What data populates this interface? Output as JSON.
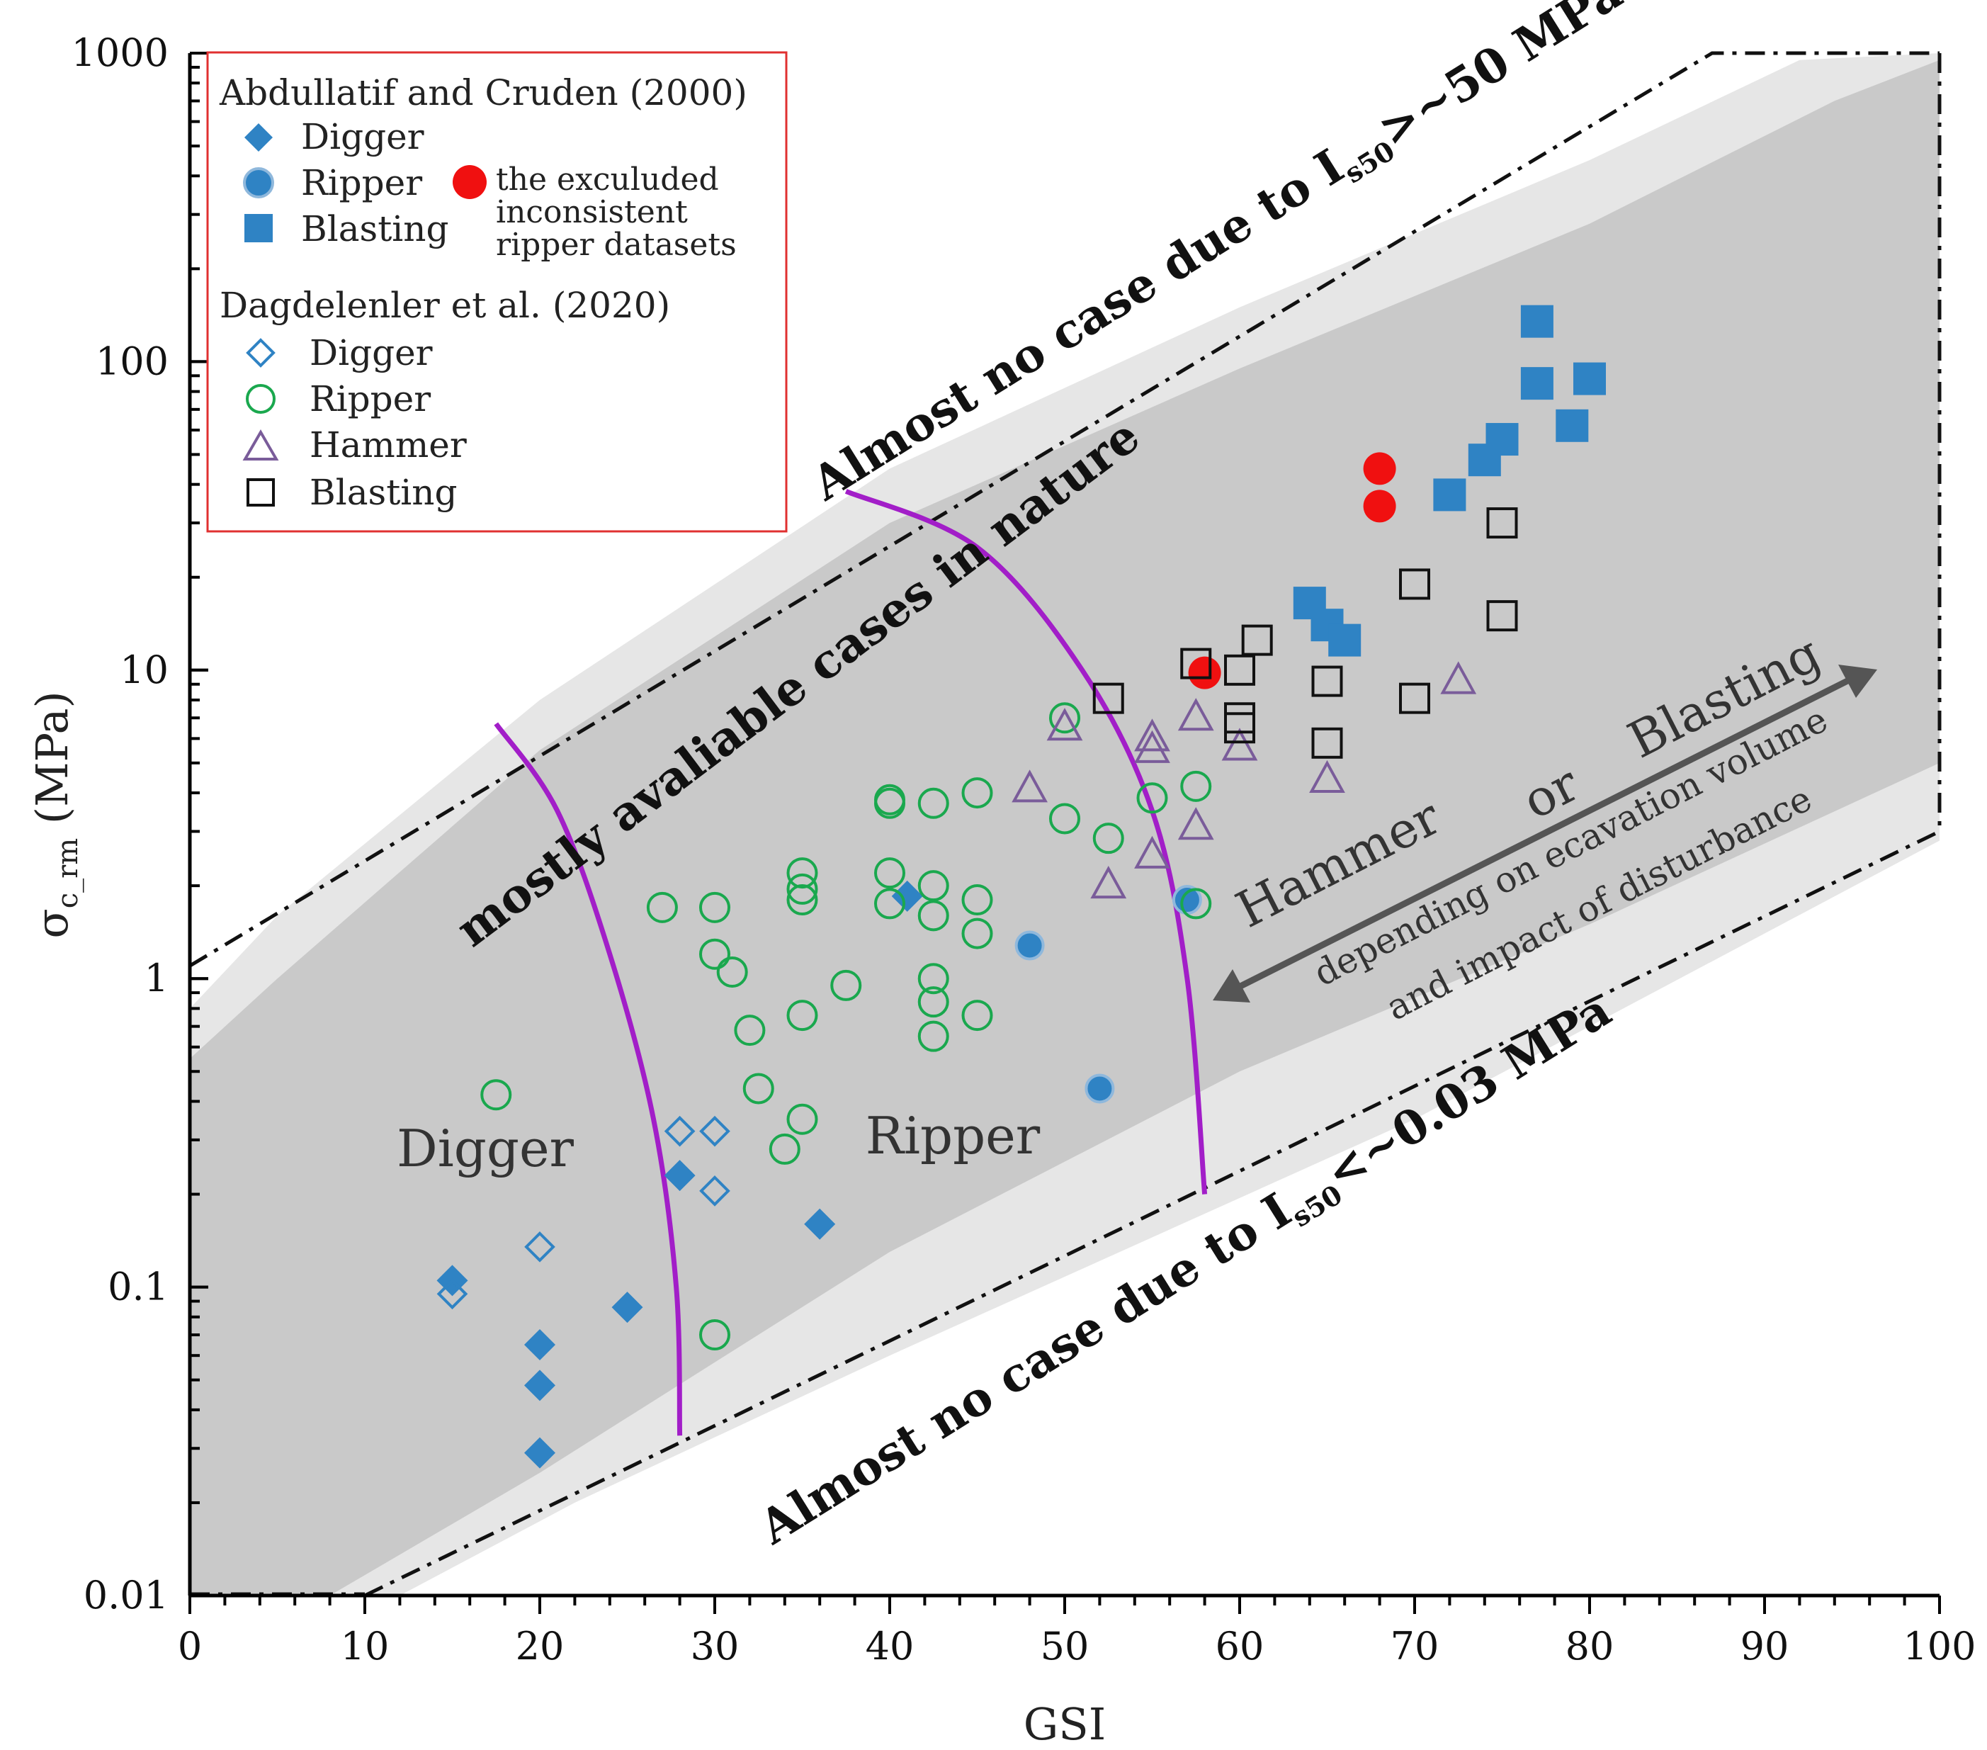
{
  "chart_data": {
    "type": "scatter",
    "title": "",
    "xlabel": "GSI",
    "ylabel": "σc_rm (MPa)",
    "ylabel_main": "σ",
    "ylabel_sub": "c_rm",
    "ylabel_unit": "(MPa)",
    "xscale": "linear",
    "yscale": "log",
    "xlim": [
      0,
      100
    ],
    "ylim": [
      0.01,
      1000
    ],
    "x_ticks": [
      "0",
      "10",
      "20",
      "30",
      "40",
      "50",
      "60",
      "70",
      "80",
      "90",
      "100"
    ],
    "y_ticks": [
      "0.01",
      "0.1",
      "1",
      "10",
      "100",
      "1000"
    ],
    "legend": {
      "group1_title": "Abdullatif and Cruden (2000)",
      "group1_items": [
        "Digger",
        "Ripper",
        "Blasting"
      ],
      "excluded_lines": [
        "the exculuded",
        "inconsistent",
        "ripper datasets"
      ],
      "group2_title": "Dagdelenler et al.  (2020)",
      "group2_items": [
        "Digger",
        "Ripper",
        "Hammer",
        "Blasting"
      ],
      "placement": "top-left"
    },
    "colors": {
      "blue": "#2f83c4",
      "green": "#1aa84e",
      "purple": "#7a5c9a",
      "red": "#f01010",
      "magenta": "#a21ec8",
      "band_light": "#e6e6e6",
      "band_dark": "#c9c9c9",
      "legend_border": "#e03030"
    },
    "region_labels": [
      "Digger",
      "Ripper"
    ],
    "band_label": "mostly avaliable cases in nature",
    "upper_bound": {
      "prefix": "Almost no case due to I",
      "sub": "s50",
      "suffix": ">~50 MPa"
    },
    "lower_bound": {
      "prefix": "Almost no case due to I",
      "sub": "s50",
      "suffix": "<~0.03 MPa"
    },
    "arrow_labels": {
      "hammer": "Hammer",
      "or": "or",
      "blasting": "Blasting",
      "line1": "depending on ecavation volume",
      "line2": "and impact of disturbance"
    },
    "upper_limit_line": [
      [
        0,
        1.1
      ],
      [
        87,
        1000
      ],
      [
        100,
        1000
      ]
    ],
    "lower_limit_line": [
      [
        10,
        0.01
      ],
      [
        100,
        3
      ]
    ],
    "band_light_polygon": [
      [
        0,
        0.55
      ],
      [
        0,
        0.8
      ],
      [
        5,
        1.6
      ],
      [
        20,
        8
      ],
      [
        40,
        45
      ],
      [
        60,
        150
      ],
      [
        80,
        450
      ],
      [
        92,
        950
      ],
      [
        100,
        1000
      ],
      [
        100,
        2.8
      ],
      [
        70,
        0.35
      ],
      [
        40,
        0.06
      ],
      [
        22,
        0.02
      ],
      [
        12,
        0.01
      ],
      [
        0,
        0.01
      ]
    ],
    "band_dark_polygon": [
      [
        0,
        0.01
      ],
      [
        0,
        0.55
      ],
      [
        5,
        1.0
      ],
      [
        20,
        5.5
      ],
      [
        40,
        30
      ],
      [
        60,
        95
      ],
      [
        80,
        280
      ],
      [
        94,
        700
      ],
      [
        100,
        950
      ],
      [
        100,
        5
      ],
      [
        80,
        1.5
      ],
      [
        60,
        0.5
      ],
      [
        40,
        0.13
      ],
      [
        20,
        0.025
      ],
      [
        8,
        0.01
      ]
    ],
    "boundary_curves": [
      {
        "name": "digger-ripper",
        "points": [
          [
            17.5,
            6.7
          ],
          [
            21,
            3.5
          ],
          [
            24,
            1.2
          ],
          [
            26.5,
            0.35
          ],
          [
            27.8,
            0.1
          ],
          [
            28,
            0.033
          ]
        ]
      },
      {
        "name": "ripper-hammer",
        "points": [
          [
            37.5,
            38
          ],
          [
            45,
            25
          ],
          [
            51,
            10
          ],
          [
            55,
            3.5
          ],
          [
            57,
            1
          ],
          [
            58,
            0.2
          ]
        ]
      }
    ],
    "series": [
      {
        "name": "Abdullatif Digger",
        "marker": "diamond-filled",
        "color": "#2f83c4",
        "points": [
          [
            15,
            0.105
          ],
          [
            20,
            0.065
          ],
          [
            20,
            0.048
          ],
          [
            20,
            0.029
          ],
          [
            25,
            0.086
          ],
          [
            28,
            0.23
          ],
          [
            36,
            0.16
          ],
          [
            41,
            1.85
          ]
        ]
      },
      {
        "name": "Abdullatif Ripper",
        "marker": "circle-filled",
        "color": "#2f83c4",
        "points": [
          [
            48,
            1.28
          ],
          [
            52,
            0.44
          ],
          [
            57,
            1.8
          ]
        ]
      },
      {
        "name": "Abdullatif Blasting",
        "marker": "square-filled",
        "color": "#2f83c4",
        "points": [
          [
            64,
            16.5
          ],
          [
            65,
            14
          ],
          [
            66,
            12.5
          ],
          [
            72,
            37
          ],
          [
            74,
            48
          ],
          [
            75,
            56
          ],
          [
            77,
            135
          ],
          [
            77,
            85
          ],
          [
            79,
            62
          ],
          [
            80,
            88
          ]
        ]
      },
      {
        "name": "Excluded Ripper",
        "marker": "circle-red",
        "color": "#f01010",
        "points": [
          [
            58,
            9.8
          ],
          [
            68,
            45
          ],
          [
            68,
            34
          ]
        ]
      },
      {
        "name": "Dagdelenler Digger",
        "marker": "diamond-open",
        "color": "#2f83c4",
        "points": [
          [
            15,
            0.095
          ],
          [
            20,
            0.135
          ],
          [
            28,
            0.32
          ],
          [
            30,
            0.32
          ],
          [
            30,
            0.205
          ]
        ]
      },
      {
        "name": "Dagdelenler Ripper",
        "marker": "circle-open",
        "color": "#1aa84e",
        "points": [
          [
            17.5,
            0.42
          ],
          [
            27,
            1.7
          ],
          [
            30,
            1.7
          ],
          [
            30,
            1.2
          ],
          [
            31,
            1.05
          ],
          [
            30,
            0.07
          ],
          [
            32,
            0.68
          ],
          [
            32.5,
            0.44
          ],
          [
            34,
            0.28
          ],
          [
            35,
            2.2
          ],
          [
            35,
            1.95
          ],
          [
            35,
            1.8
          ],
          [
            35,
            0.76
          ],
          [
            35,
            0.35
          ],
          [
            37.5,
            0.95
          ],
          [
            40,
            3.8
          ],
          [
            40,
            3.7
          ],
          [
            40,
            2.2
          ],
          [
            40,
            1.75
          ],
          [
            42.5,
            3.7
          ],
          [
            42.5,
            2.0
          ],
          [
            42.5,
            1.6
          ],
          [
            42.5,
            1.0
          ],
          [
            42.5,
            0.84
          ],
          [
            42.5,
            0.65
          ],
          [
            45,
            4.0
          ],
          [
            45,
            1.8
          ],
          [
            45,
            1.4
          ],
          [
            45,
            0.76
          ],
          [
            50,
            7.0
          ],
          [
            50,
            3.3
          ],
          [
            52.5,
            2.85
          ],
          [
            55,
            3.85
          ],
          [
            57.5,
            4.2
          ],
          [
            57.5,
            1.75
          ]
        ]
      },
      {
        "name": "Dagdelenler Hammer",
        "marker": "triangle-open",
        "color": "#7a5c9a",
        "points": [
          [
            48,
            4.1
          ],
          [
            50,
            6.5
          ],
          [
            52.5,
            2.0
          ],
          [
            55,
            6.0
          ],
          [
            55,
            5.5
          ],
          [
            55,
            2.5
          ],
          [
            57.5,
            7.0
          ],
          [
            57.5,
            3.1
          ],
          [
            60,
            5.6
          ],
          [
            65,
            4.4
          ],
          [
            72.5,
            9.2
          ]
        ]
      },
      {
        "name": "Dagdelenler Blasting",
        "marker": "square-open",
        "color": "#111111",
        "points": [
          [
            52.5,
            8.1
          ],
          [
            57.5,
            10.5
          ],
          [
            60,
            10.0
          ],
          [
            60,
            7.0
          ],
          [
            60,
            6.5
          ],
          [
            61,
            12.5
          ],
          [
            65,
            9.2
          ],
          [
            65,
            5.8
          ],
          [
            70,
            19
          ],
          [
            70,
            8.1
          ],
          [
            75,
            30
          ],
          [
            75,
            15
          ]
        ]
      }
    ]
  }
}
